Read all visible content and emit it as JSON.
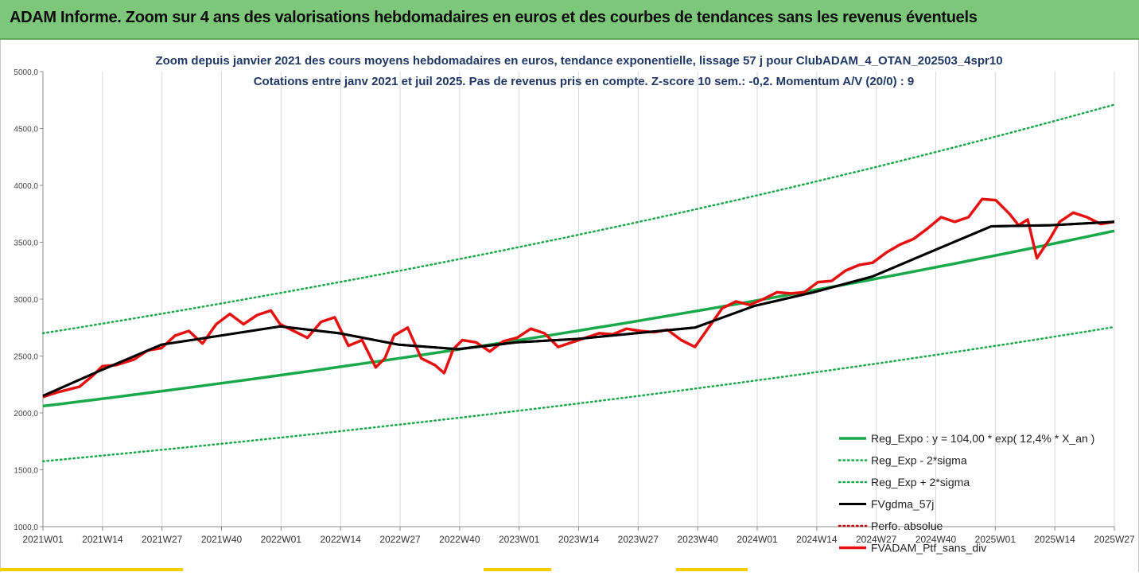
{
  "header": {
    "title": "ADAM Informe. Zoom sur 4 ans des valorisations hebdomadaires en euros et des courbes de tendances sans les revenus éventuels"
  },
  "colors": {
    "banner": "#7dc77a",
    "reg_expo": "#19a94a",
    "sigma_lines": "#19a94a",
    "fvgdma": "#000000",
    "perfo": "#c00000",
    "portfolio": "#e51010"
  },
  "chart_data": {
    "type": "line",
    "title": "Zoom depuis janvier 2021 des cours moyens hebdomadaires  en euros, tendance exponentielle, lissage 57 j pour ClubADAM_4_OTAN_202503_4spr10",
    "subtitle": "Cotations entre janv 2021 et juil 2025. Pas de revenus pris en compte. Z-score 10 sem.: -0,2. Momentum A/V (20/0) : 9",
    "ylim": [
      1000,
      5000
    ],
    "yticks": [
      "1000,0",
      "1500,0",
      "2000,0",
      "2500,0",
      "3000,0",
      "3500,0",
      "4000,0",
      "4500,0",
      "5000,0"
    ],
    "xticks": [
      "2021W01",
      "2021W14",
      "2021W27",
      "2021W40",
      "2022W01",
      "2022W14",
      "2022W27",
      "2022W40",
      "2023W01",
      "2023W14",
      "2023W27",
      "2023W40",
      "2024W01",
      "2024W14",
      "2024W27",
      "2024W40",
      "2025W01",
      "2025W14",
      "2025W27"
    ],
    "week_count": 235,
    "grid": "vertical",
    "legend_position": "right",
    "series": [
      {
        "name": "Reg_Expo : y = 104,00 * exp( 12,4% *  X_an )",
        "style": "solid-thick",
        "color": "#19a94a",
        "x": [
          0,
          235
        ],
        "values": [
          2060,
          3600
        ]
      },
      {
        "name": "Reg_Exp - 2*sigma",
        "style": "dotted",
        "color": "#19a94a",
        "x": [
          0,
          235
        ],
        "values": [
          1575,
          2755
        ]
      },
      {
        "name": "Reg_Exp + 2*sigma",
        "style": "dotted",
        "color": "#19a94a",
        "x": [
          0,
          235
        ],
        "values": [
          2700,
          4710
        ]
      },
      {
        "name": "FVgdma_57j",
        "style": "solid",
        "color": "#000000",
        "x": [
          0,
          13,
          26,
          39,
          52,
          65,
          78,
          91,
          104,
          117,
          130,
          143,
          156,
          169,
          182,
          195,
          208,
          221,
          235
        ],
        "values": [
          2150,
          2380,
          2600,
          2680,
          2760,
          2700,
          2600,
          2560,
          2620,
          2650,
          2700,
          2750,
          2940,
          3060,
          3200,
          3420,
          3640,
          3650,
          3680
        ]
      },
      {
        "name": "Perfo. absolue",
        "style": "dotted",
        "color": "#c00000",
        "x": [],
        "values": []
      },
      {
        "name": "FVADAM_Ptf_sans_div",
        "style": "solid-thick",
        "color": "#e51010",
        "x": [
          0,
          3,
          5,
          8,
          11,
          13,
          16,
          20,
          23,
          26,
          29,
          32,
          35,
          38,
          41,
          44,
          47,
          50,
          52,
          55,
          58,
          61,
          64,
          67,
          70,
          73,
          75,
          77,
          80,
          83,
          86,
          88,
          90,
          92,
          95,
          98,
          101,
          104,
          107,
          110,
          113,
          116,
          119,
          122,
          125,
          128,
          131,
          134,
          137,
          140,
          143,
          146,
          149,
          152,
          155,
          158,
          161,
          164,
          167,
          170,
          173,
          176,
          179,
          182,
          185,
          188,
          191,
          194,
          197,
          200,
          203,
          206,
          209,
          212,
          214,
          216,
          218,
          221,
          223,
          226,
          229,
          232,
          235
        ],
        "values": [
          2140,
          2180,
          2200,
          2230,
          2330,
          2410,
          2420,
          2470,
          2550,
          2570,
          2680,
          2720,
          2610,
          2780,
          2870,
          2780,
          2860,
          2900,
          2780,
          2720,
          2660,
          2800,
          2840,
          2590,
          2640,
          2400,
          2480,
          2680,
          2750,
          2480,
          2420,
          2350,
          2560,
          2640,
          2620,
          2540,
          2630,
          2660,
          2740,
          2700,
          2580,
          2620,
          2660,
          2700,
          2690,
          2740,
          2720,
          2710,
          2730,
          2640,
          2580,
          2750,
          2920,
          2980,
          2950,
          3000,
          3060,
          3050,
          3060,
          3150,
          3160,
          3250,
          3300,
          3320,
          3410,
          3480,
          3530,
          3620,
          3720,
          3680,
          3720,
          3880,
          3870,
          3750,
          3650,
          3700,
          3360,
          3540,
          3680,
          3760,
          3720,
          3660,
          3680
        ]
      }
    ]
  }
}
